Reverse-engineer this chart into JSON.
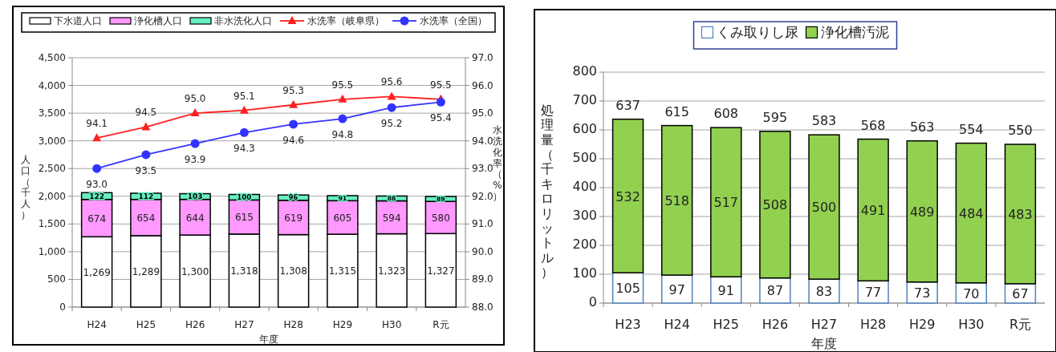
{
  "chart_data": [
    {
      "type": "bar",
      "stacked": true,
      "xlabel": "年度",
      "ylabel": "人口（千人）",
      "y2label": "水洗化率（%）",
      "categories": [
        "H24",
        "H25",
        "H26",
        "H27",
        "H28",
        "H29",
        "H30",
        "R元"
      ],
      "series": [
        {
          "name": "下水道人口",
          "color": "#ffffff",
          "values": [
            1269,
            1289,
            1300,
            1318,
            1308,
            1315,
            1323,
            1327
          ],
          "value_labels": [
            "1,269",
            "1,289",
            "1,300",
            "1,318",
            "1,308",
            "1,315",
            "1,323",
            "1,327"
          ]
        },
        {
          "name": "浄化槽人口",
          "color": "#ff99ff",
          "values": [
            674,
            654,
            644,
            615,
            619,
            605,
            594,
            580
          ],
          "value_labels": [
            "674",
            "654",
            "644",
            "615",
            "619",
            "605",
            "594",
            "580"
          ]
        },
        {
          "name": "非水洗化人口",
          "color": "#66f0c0",
          "values": [
            122,
            112,
            103,
            100,
            96,
            91,
            88,
            89
          ],
          "value_labels": [
            "122",
            "112",
            "103",
            "100",
            "96",
            "91",
            "88",
            "89"
          ]
        },
        {
          "name": "水洗率（岐阜県）",
          "type": "line",
          "axis": "y2",
          "marker": "triangle",
          "color": "#ff2020",
          "values": [
            94.1,
            94.5,
            95.0,
            95.1,
            95.3,
            95.5,
            95.6,
            95.5
          ],
          "value_labels": [
            "94.1",
            "94.5",
            "95.0",
            "95.1",
            "95.3",
            "95.5",
            "95.6",
            "95.5"
          ]
        },
        {
          "name": "水洗率（全国）",
          "type": "line",
          "axis": "y2",
          "marker": "circle",
          "color": "#3333ff",
          "values": [
            93.0,
            93.5,
            93.9,
            94.3,
            94.6,
            94.8,
            95.2,
            95.4
          ],
          "value_labels": [
            "93.0",
            "93.5",
            "93.9",
            "94.3",
            "94.6",
            "94.8",
            "95.2",
            "95.4"
          ]
        }
      ],
      "ylim": [
        0,
        4500
      ],
      "yticks": [
        0,
        500,
        {
          "value": 1000,
          "label": "1,000"
        },
        {
          "value": 1500,
          "label": "1,500"
        },
        {
          "value": 2000,
          "label": "2,000"
        },
        {
          "value": 2500,
          "label": "2,500"
        },
        {
          "value": 3000,
          "label": "3,000"
        },
        {
          "value": 3500,
          "label": "3,500"
        },
        {
          "value": 4000,
          "label": "4,000"
        },
        {
          "value": 4500,
          "label": "4,500"
        }
      ],
      "y2lim": [
        88,
        97
      ],
      "y2ticks": [
        {
          "value": 88,
          "label": "88.0"
        },
        {
          "value": 89,
          "label": "89.0"
        },
        {
          "value": 90,
          "label": "90.0"
        },
        {
          "value": 91,
          "label": "91.0"
        },
        {
          "value": 92,
          "label": "92.0"
        },
        {
          "value": 93,
          "label": "93.0"
        },
        {
          "value": 94,
          "label": "94.0"
        },
        {
          "value": 95,
          "label": "95.0"
        },
        {
          "value": 96,
          "label": "96.0"
        },
        {
          "value": 97,
          "label": "97.0"
        }
      ],
      "grid": "y",
      "legend": "top"
    },
    {
      "type": "bar",
      "stacked": true,
      "xlabel": "年度",
      "ylabel": "処理量（千キロリットル）",
      "categories": [
        "H23",
        "H24",
        "H25",
        "H26",
        "H27",
        "H28",
        "H29",
        "H30",
        "R元"
      ],
      "series": [
        {
          "name": "くみ取りし尿",
          "color": "#ffffff",
          "values": [
            105,
            97,
            91,
            87,
            83,
            77,
            73,
            70,
            67
          ]
        },
        {
          "name": "浄化槽汚泥",
          "color": "#92d050",
          "values": [
            532,
            518,
            517,
            508,
            500,
            491,
            489,
            484,
            483
          ]
        }
      ],
      "totals": [
        "637",
        "615",
        "608",
        "595",
        "583",
        "568",
        "563",
        "554",
        "550"
      ],
      "ylim": [
        0,
        800
      ],
      "yticks": [
        0,
        100,
        200,
        300,
        400,
        500,
        600,
        700,
        800
      ],
      "data_labels": true,
      "grid": "y",
      "legend": "top"
    }
  ]
}
